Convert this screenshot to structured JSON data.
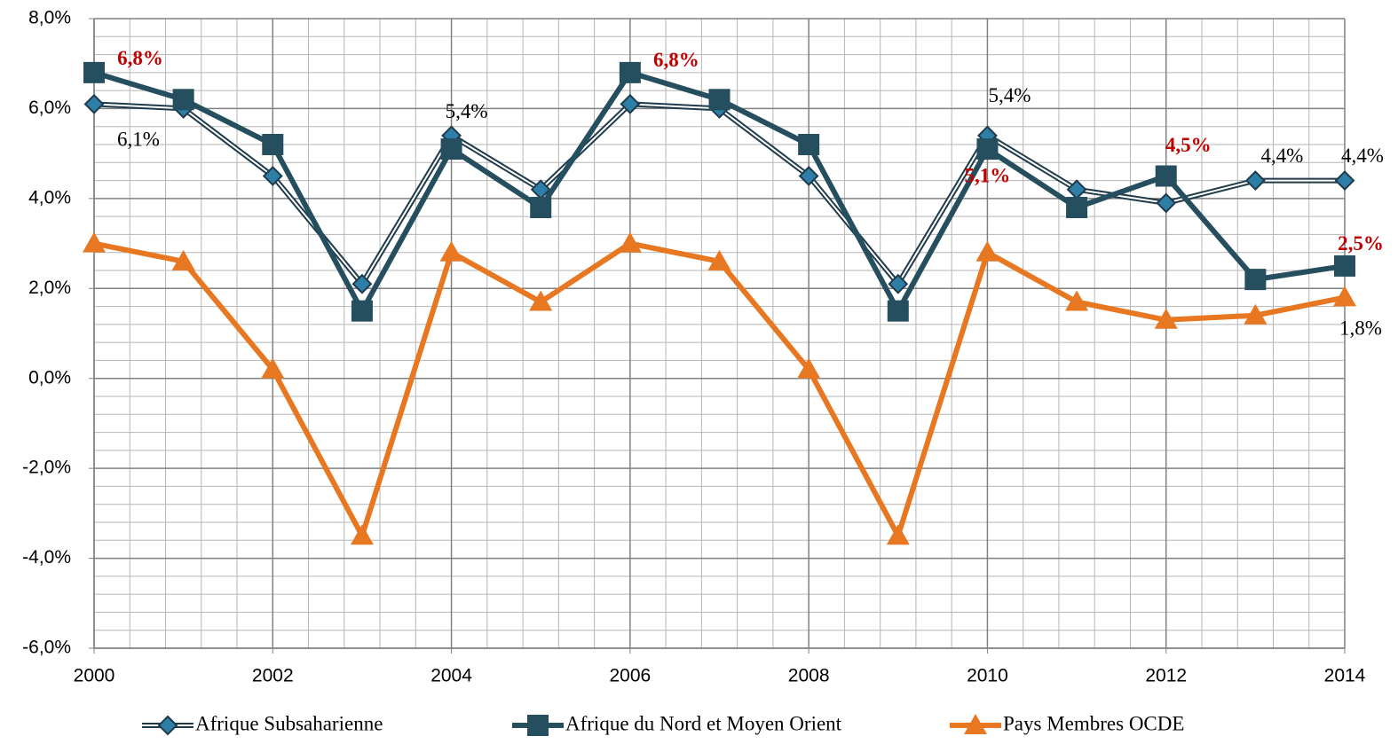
{
  "chart_data": {
    "type": "line",
    "x": [
      2000,
      2001,
      2002,
      2003,
      2004,
      2005,
      2006,
      2007,
      2008,
      2009,
      2010,
      2011,
      2012,
      2013,
      2014
    ],
    "xlim": [
      2000,
      2014
    ],
    "xticks": [
      2000,
      2002,
      2004,
      2006,
      2008,
      2010,
      2012,
      2014
    ],
    "ylim": [
      -6,
      8
    ],
    "yticks": [
      {
        "value": -6,
        "label": "-6,0%"
      },
      {
        "value": -4,
        "label": "-4,0%"
      },
      {
        "value": -2,
        "label": "-2,0%"
      },
      {
        "value": 0,
        "label": "0,0%"
      },
      {
        "value": 2,
        "label": "2,0%"
      },
      {
        "value": 4,
        "label": "4,0%"
      },
      {
        "value": 6,
        "label": "6,0%"
      },
      {
        "value": 8,
        "label": "8,0%"
      }
    ],
    "grid": true,
    "legend": "bottom",
    "series": [
      {
        "name": "Afrique Subsaharienne",
        "color": "#2e7fa8",
        "marker": "diamond",
        "values": [
          6.1,
          6.0,
          4.5,
          2.1,
          5.4,
          4.2,
          6.1,
          6.0,
          4.5,
          2.1,
          5.4,
          4.2,
          3.9,
          4.4,
          4.4
        ],
        "value_labels": [
          "6,1%",
          null,
          null,
          null,
          "5,4%",
          null,
          null,
          null,
          null,
          null,
          "5,4%",
          null,
          null,
          "4,4%",
          "4,4%"
        ]
      },
      {
        "name": "Afrique du Nord et Moyen Orient",
        "color": "#254e5e",
        "marker": "square",
        "values": [
          6.8,
          6.2,
          5.2,
          1.5,
          5.1,
          3.8,
          6.8,
          6.2,
          5.2,
          1.5,
          5.1,
          3.8,
          4.5,
          2.2,
          2.5
        ],
        "value_labels": [
          "6,8%",
          null,
          null,
          null,
          null,
          null,
          "6,8%",
          null,
          null,
          null,
          "5,1%",
          null,
          "4,5%",
          null,
          "2,5%"
        ]
      },
      {
        "name": "Pays Membres OCDE",
        "color": "#e87722",
        "marker": "triangle",
        "values": [
          3.0,
          2.6,
          0.2,
          -3.5,
          2.8,
          1.7,
          3.0,
          2.6,
          0.2,
          -3.5,
          2.8,
          1.7,
          1.3,
          1.4,
          1.8
        ],
        "value_labels": [
          null,
          null,
          null,
          null,
          null,
          null,
          null,
          null,
          null,
          null,
          null,
          null,
          null,
          null,
          "1,8%"
        ]
      }
    ]
  }
}
